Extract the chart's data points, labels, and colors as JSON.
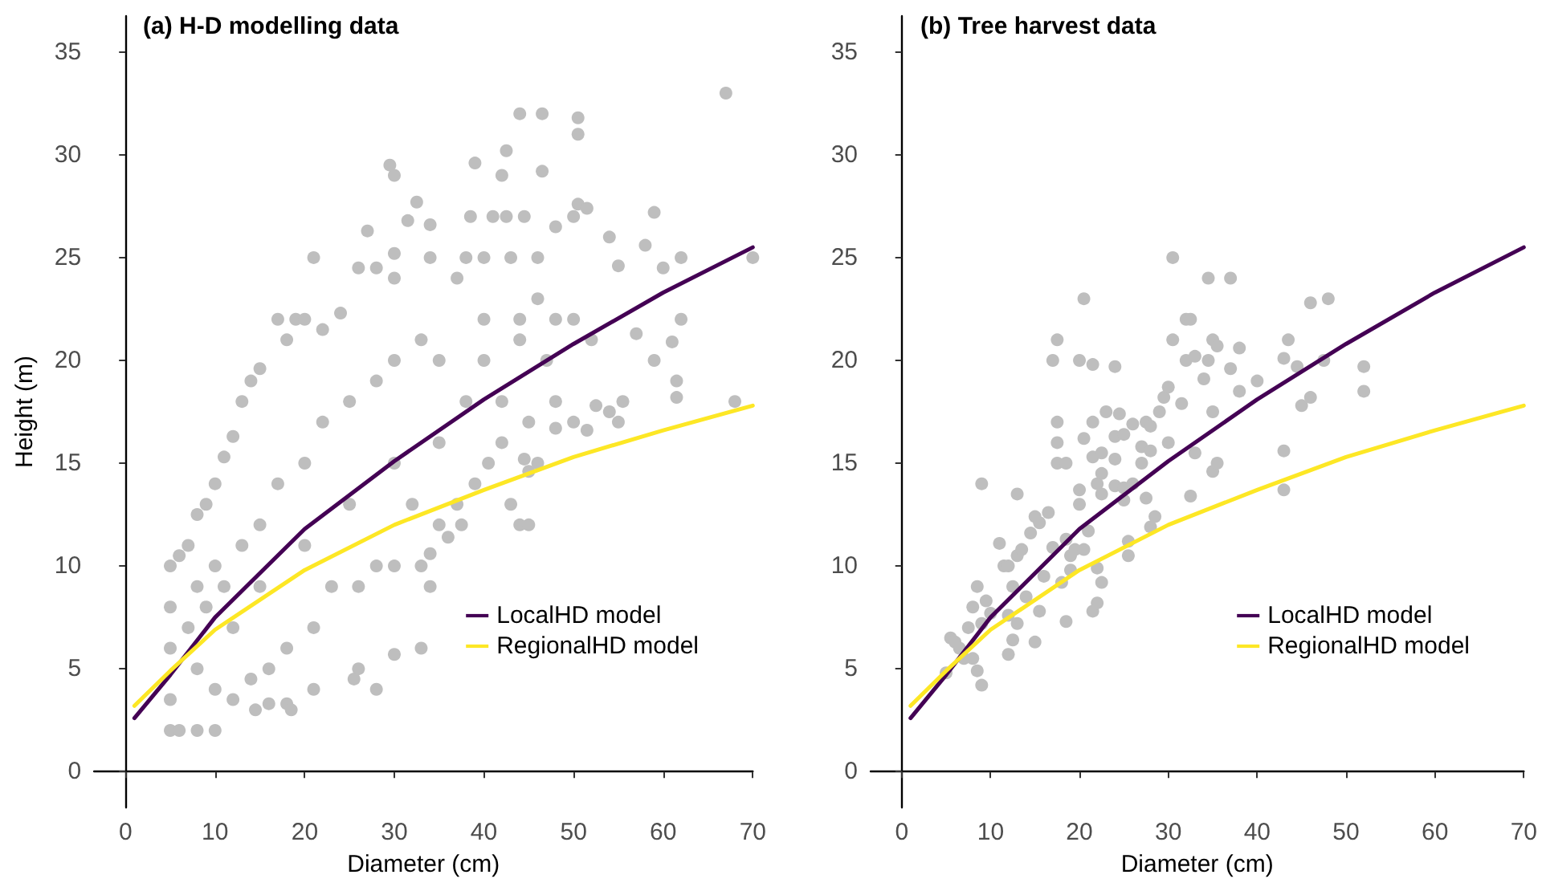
{
  "chart_data": [
    {
      "type": "scatter",
      "title": "(a) H-D modelling data",
      "xlabel": "Diameter (cm)",
      "ylabel": "Height (m)",
      "xlim": [
        -3.5,
        70
      ],
      "ylim": [
        -1.75,
        36.75
      ],
      "xticks": [
        0,
        10,
        20,
        30,
        40,
        50,
        60,
        70
      ],
      "yticks": [
        0,
        5,
        10,
        15,
        20,
        25,
        30,
        35
      ],
      "grid": false,
      "legend": "bottom right",
      "series": [
        {
          "color": "#bebebe",
          "marker": "circle",
          "x": [
            67,
            44,
            46.5,
            50.5,
            50.5,
            42.5,
            29.5,
            30,
            39,
            42,
            46.5,
            32.5,
            31.5,
            34,
            27,
            38.5,
            41,
            42.5,
            44.5,
            48,
            50,
            50.5,
            51.5,
            54,
            58,
            59,
            21,
            30,
            60,
            62,
            70,
            55,
            61,
            62,
            57,
            59,
            61.5,
            61.5,
            68,
            55.5,
            52.5,
            54,
            55,
            50,
            51.5,
            48,
            46,
            45,
            44.5,
            44,
            45,
            43,
            40.5,
            35,
            36,
            37.5,
            33,
            34,
            34,
            33,
            30,
            28,
            26,
            25.5,
            21,
            18,
            18.5,
            14.5,
            16,
            10,
            8,
            5,
            6,
            5,
            5,
            5,
            5,
            6,
            7,
            8,
            9,
            10,
            11,
            12,
            13,
            14,
            15,
            17,
            18,
            19,
            20,
            22,
            24,
            26,
            28,
            30,
            34,
            37,
            38,
            40,
            43,
            46,
            40,
            44,
            48,
            50,
            52,
            47,
            48,
            45,
            42,
            39,
            37,
            30,
            28,
            26,
            23,
            21,
            18,
            16,
            14,
            12,
            10,
            8,
            7,
            9,
            11,
            13,
            15,
            17,
            20,
            22,
            25,
            28,
            30,
            33,
            35,
            38,
            40,
            42,
            44,
            46,
            30,
            32,
            35,
            25,
            20,
            15,
            12,
            10,
            8
          ],
          "values": [
            33,
            32,
            32,
            31.8,
            31,
            30.2,
            29.5,
            29,
            29.6,
            29,
            29.2,
            27.7,
            26.8,
            26.6,
            26.3,
            27,
            27,
            27,
            27,
            26.5,
            27,
            27.6,
            27.4,
            26,
            25.6,
            27.2,
            25,
            25.2,
            24.5,
            25,
            25,
            24.6,
            20.9,
            22,
            21.3,
            20,
            19,
            18.2,
            18,
            18,
            17.8,
            17.5,
            17,
            17,
            16.6,
            16.7,
            15,
            14.6,
            15.2,
            12,
            12,
            13,
            15,
            12,
            11.4,
            12,
            10,
            10.6,
            9,
            6,
            5.7,
            4,
            5,
            4.5,
            4,
            3.3,
            3,
            3,
            3.3,
            2,
            2,
            2,
            2,
            3.5,
            6,
            8,
            10,
            10.5,
            11,
            12.5,
            13,
            14,
            15.3,
            16.3,
            18,
            19,
            19.6,
            22,
            21,
            22,
            22,
            21.5,
            22.3,
            24.5,
            24.5,
            24,
            25,
            24,
            25,
            25,
            25,
            25,
            22,
            22,
            22,
            22,
            21,
            20,
            18,
            17,
            16,
            14,
            13,
            10,
            10,
            9,
            9,
            7,
            6,
            5,
            4.5,
            3.5,
            4,
            5,
            7,
            8,
            9,
            11,
            12,
            14,
            15,
            17,
            18,
            19,
            20,
            21,
            20,
            18,
            20,
            18,
            21,
            23,
            15,
            13,
            16,
            13,
            11,
            9,
            7,
            10,
            9
          ]
        },
        {
          "type": "line",
          "name": "LocalHD model",
          "color": "#440154",
          "x": [
            1,
            5,
            10,
            20,
            30,
            40,
            50,
            60,
            70
          ],
          "values": [
            2.6,
            4.7,
            7.5,
            11.8,
            15.1,
            18.1,
            20.8,
            23.3,
            25.5
          ]
        },
        {
          "type": "line",
          "name": "RegionalHD model",
          "color": "#fde725",
          "x": [
            1,
            5,
            10,
            20,
            30,
            40,
            50,
            60,
            70
          ],
          "values": [
            3.2,
            4.9,
            6.9,
            9.8,
            12.0,
            13.7,
            15.3,
            16.6,
            17.8
          ]
        }
      ]
    },
    {
      "type": "scatter",
      "title": "(b) Tree harvest data",
      "xlabel": "Diameter (cm)",
      "xlim": [
        -3.5,
        70
      ],
      "ylim": [
        -1.75,
        36.75
      ],
      "xticks": [
        0,
        10,
        20,
        30,
        40,
        50,
        60,
        70
      ],
      "yticks": [
        0,
        5,
        10,
        15,
        20,
        25,
        30,
        35
      ],
      "grid": false,
      "legend": "bottom right",
      "series": [
        {
          "color": "#bebebe",
          "marker": "circle",
          "x": [
            5,
            5.5,
            6,
            6.5,
            7,
            7.5,
            8,
            8,
            8.5,
            8.5,
            9,
            9,
            9,
            9.5,
            10,
            11,
            11.5,
            12,
            12,
            12.5,
            12.5,
            12,
            13,
            13,
            13.5,
            13,
            14,
            14.5,
            15,
            15,
            15.5,
            15.5,
            16,
            16.5,
            17,
            17,
            17.5,
            17.5,
            17.5,
            17.5,
            18,
            18.5,
            18.5,
            18.5,
            19,
            19,
            19.5,
            20,
            20,
            20,
            20.5,
            20.5,
            20.5,
            21,
            21.5,
            21.5,
            21.5,
            21.5,
            22,
            22,
            22.5,
            22,
            22.5,
            22.5,
            22.5,
            23,
            24,
            24,
            24,
            24,
            24.5,
            25,
            25,
            25,
            25.5,
            25.5,
            26,
            26,
            27,
            27,
            27.5,
            27.5,
            28,
            28,
            28.5,
            28,
            29,
            29.5,
            30,
            30,
            30.5,
            30.5,
            31.5,
            32,
            32.5,
            32,
            33,
            32.5,
            33,
            34,
            34.5,
            34.5,
            35,
            35,
            35.5,
            35,
            35.5,
            37,
            37,
            38,
            38,
            40,
            43,
            43.5,
            43,
            43,
            44.5,
            45,
            46,
            46,
            48,
            47.5,
            52,
            52
          ],
          "values": [
            4.8,
            6.5,
            6.3,
            6,
            5.5,
            7,
            8,
            5.5,
            4.9,
            9,
            4.2,
            14,
            7.2,
            8.3,
            7.7,
            11.1,
            10,
            7.6,
            5.7,
            6.4,
            9,
            10,
            10.5,
            13.5,
            10.8,
            7.2,
            8.5,
            11.6,
            6.3,
            12.4,
            12.1,
            7.8,
            9.5,
            12.6,
            10.9,
            20,
            21,
            16,
            17,
            15,
            9.2,
            15,
            7.3,
            11.3,
            10.5,
            9.8,
            10.8,
            13.7,
            13,
            20,
            23,
            16.2,
            10.8,
            11.7,
            17,
            19.8,
            15.3,
            7.8,
            8.2,
            9.9,
            9.2,
            14,
            14.5,
            13.5,
            15.5,
            17.5,
            19.7,
            16.3,
            13.9,
            15.2,
            17.4,
            16.4,
            13.2,
            13.8,
            11.2,
            10.5,
            16.9,
            14,
            15,
            15.8,
            17,
            13.3,
            15.6,
            11.9,
            12.4,
            16.8,
            17.5,
            18.2,
            18.7,
            16,
            25,
            21,
            17.9,
            22,
            22,
            20,
            20.2,
            13.4,
            15.5,
            19.1,
            24,
            20,
            21,
            17.5,
            20.7,
            14.6,
            15,
            24,
            19.6,
            20.6,
            18.5,
            19,
            20.1,
            21,
            15.6,
            13.7,
            19.7,
            17.8,
            22.8,
            18.2,
            23,
            20,
            19.7,
            18.5
          ]
        },
        {
          "type": "line",
          "name": "LocalHD model",
          "color": "#440154",
          "x": [
            1,
            5,
            10,
            20,
            30,
            40,
            50,
            60,
            70
          ],
          "values": [
            2.6,
            4.7,
            7.5,
            11.8,
            15.1,
            18.1,
            20.8,
            23.3,
            25.5
          ]
        },
        {
          "type": "line",
          "name": "RegionalHD model",
          "color": "#fde725",
          "x": [
            1,
            5,
            10,
            20,
            30,
            40,
            50,
            60,
            70
          ],
          "values": [
            3.2,
            4.9,
            6.9,
            9.8,
            12.0,
            13.7,
            15.3,
            16.6,
            17.8
          ]
        }
      ]
    }
  ]
}
